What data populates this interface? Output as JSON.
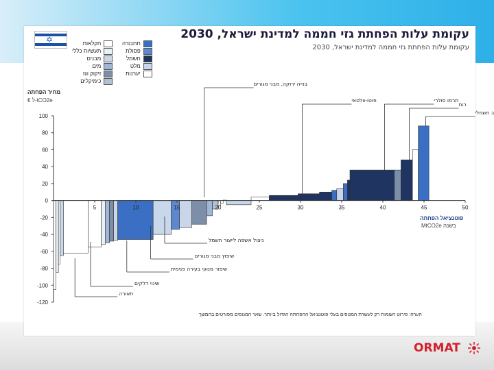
{
  "title": "עקומת עלות הפחתת גזי חממה למדינת ישראל, 2030",
  "subtitle": "עקומת עלות הפחתת גזי חממה למדינת ישראל, 2030",
  "legend": {
    "left": [
      {
        "label": "חקלאות",
        "color": "#ffffff"
      },
      {
        "label": "תעשיות כללי",
        "color": "#eaf0f8"
      },
      {
        "label": "מבנים",
        "color": "#c8d7ea"
      },
      {
        "label": "מים",
        "color": "#9fb6d6"
      },
      {
        "label": "זיקוק וגז",
        "color": "#7d8fa8"
      },
      {
        "label": "כימיקלים",
        "color": "#b3c0d2"
      }
    ],
    "right": [
      {
        "label": "תחבורה",
        "color": "#3a6fc4"
      },
      {
        "label": "פסולת",
        "color": "#5d88cf"
      },
      {
        "label": "חשמל",
        "color": "#1f3461"
      },
      {
        "label": "מלט",
        "color": "#c9d6ea"
      },
      {
        "label": "יערנות",
        "color": "#ffffff"
      }
    ]
  },
  "axis": {
    "ylabel": "מחיר הפחתה",
    "yunit": "€ ל-tCO2e",
    "xlabel": "פוטנציאל הפחתה",
    "xunit": "MtCO2e בשנה"
  },
  "annotations": [
    {
      "text": "בנייה ירוקה, מבני מגורים",
      "x": 18.3
    },
    {
      "text": "פוטו-וולטאי",
      "x": 30.2
    },
    {
      "text": "תרמו סולרי",
      "x": 40.2
    },
    {
      "text": "רוח",
      "x": 43.2
    },
    {
      "text": "רכב חשמלי",
      "x": 45.2
    },
    {
      "text": "ניצול אשפה לייצור חשמל",
      "x": 13.5
    },
    {
      "text": "שיפוץ מבני מגורים",
      "x": 11.8
    },
    {
      "text": "שיפור מנועי בעירה פנימית",
      "x": 8.9
    },
    {
      "text": "שינוי דלקים",
      "x": 4.5
    },
    {
      "text": "תאורה",
      "x": 2.6
    }
  ],
  "footnote": "הערה: פירוט השמות רק לעשרת המנופים בעלי פוטנציאל ההפחתה הגדול ביותר. שאר המנופים מפורטים בהמשך",
  "logo": "ORMAT",
  "chart_data": {
    "type": "bar",
    "xlim": [
      0,
      50
    ],
    "ylim": [
      -120,
      100
    ],
    "xticks": [
      5,
      10,
      15,
      20,
      25,
      30,
      35,
      40,
      45,
      50
    ],
    "yticks": [
      100,
      80,
      60,
      40,
      20,
      0,
      -20,
      -40,
      -60,
      -80,
      -100,
      -120
    ],
    "bars": [
      {
        "x0": 0.0,
        "x1": 0.3,
        "y": -105,
        "color": "#ffffff"
      },
      {
        "x0": 0.3,
        "x1": 0.6,
        "y": -85,
        "color": "#eaf0f8"
      },
      {
        "x0": 0.6,
        "x1": 0.8,
        "y": -75,
        "color": "#ffffff"
      },
      {
        "x0": 0.8,
        "x1": 1.2,
        "y": -65,
        "color": "#c8d7ea"
      },
      {
        "x0": 1.2,
        "x1": 4.2,
        "y": -62,
        "color": "#ffffff"
      },
      {
        "x0": 4.2,
        "x1": 5.8,
        "y": -55,
        "color": "#ffffff"
      },
      {
        "x0": 5.8,
        "x1": 6.3,
        "y": -52,
        "color": "#eaf0f8"
      },
      {
        "x0": 6.3,
        "x1": 6.8,
        "y": -50,
        "color": "#9fb6d6"
      },
      {
        "x0": 6.8,
        "x1": 7.3,
        "y": -48,
        "color": "#7d8fa8"
      },
      {
        "x0": 7.3,
        "x1": 7.8,
        "y": -47,
        "color": "#c8d7ea"
      },
      {
        "x0": 7.8,
        "x1": 12.1,
        "y": -46,
        "color": "#3a6fc4"
      },
      {
        "x0": 12.1,
        "x1": 14.3,
        "y": -40,
        "color": "#c8d7ea"
      },
      {
        "x0": 14.3,
        "x1": 15.3,
        "y": -34,
        "color": "#5d88cf"
      },
      {
        "x0": 15.3,
        "x1": 16.8,
        "y": -32,
        "color": "#c9d6ea"
      },
      {
        "x0": 16.8,
        "x1": 18.6,
        "y": -28,
        "color": "#7d8fa8"
      },
      {
        "x0": 18.6,
        "x1": 19.3,
        "y": -18,
        "color": "#9fb6d6"
      },
      {
        "x0": 19.3,
        "x1": 20.0,
        "y": -10,
        "color": "#b3c0d2"
      },
      {
        "x0": 20.0,
        "x1": 20.3,
        "y": -6,
        "color": "#ffffff"
      },
      {
        "x0": 20.3,
        "x1": 20.6,
        "y": -3,
        "color": "#ffffff"
      },
      {
        "x0": 20.6,
        "x1": 21.0,
        "y": 0.5,
        "color": "#ffffff"
      },
      {
        "x0": 21.0,
        "x1": 24.0,
        "y": -5,
        "color": "#c8d7ea"
      },
      {
        "x0": 24.0,
        "x1": 26.2,
        "y": 4,
        "color": "#ffffff"
      },
      {
        "x0": 26.2,
        "x1": 29.7,
        "y": 6,
        "color": "#1f3461"
      },
      {
        "x0": 29.7,
        "x1": 32.3,
        "y": 8,
        "color": "#1f3461"
      },
      {
        "x0": 32.3,
        "x1": 33.8,
        "y": 10,
        "color": "#1f3461"
      },
      {
        "x0": 33.8,
        "x1": 34.4,
        "y": 12,
        "color": "#3a6fc4"
      },
      {
        "x0": 34.4,
        "x1": 35.2,
        "y": 14,
        "color": "#c9d6ea"
      },
      {
        "x0": 35.2,
        "x1": 35.7,
        "y": 20,
        "color": "#3a6fc4"
      },
      {
        "x0": 35.7,
        "x1": 36.0,
        "y": 24,
        "color": "#1f3461"
      },
      {
        "x0": 36.0,
        "x1": 41.4,
        "y": 36,
        "color": "#1f3461"
      },
      {
        "x0": 41.4,
        "x1": 42.2,
        "y": 36,
        "color": "#7d8fa8"
      },
      {
        "x0": 42.2,
        "x1": 43.6,
        "y": 48,
        "color": "#1f3461"
      },
      {
        "x0": 43.6,
        "x1": 44.3,
        "y": 60,
        "color": "#ffffff"
      },
      {
        "x0": 44.3,
        "x1": 45.6,
        "y": 88,
        "color": "#3a6fc4"
      }
    ]
  }
}
